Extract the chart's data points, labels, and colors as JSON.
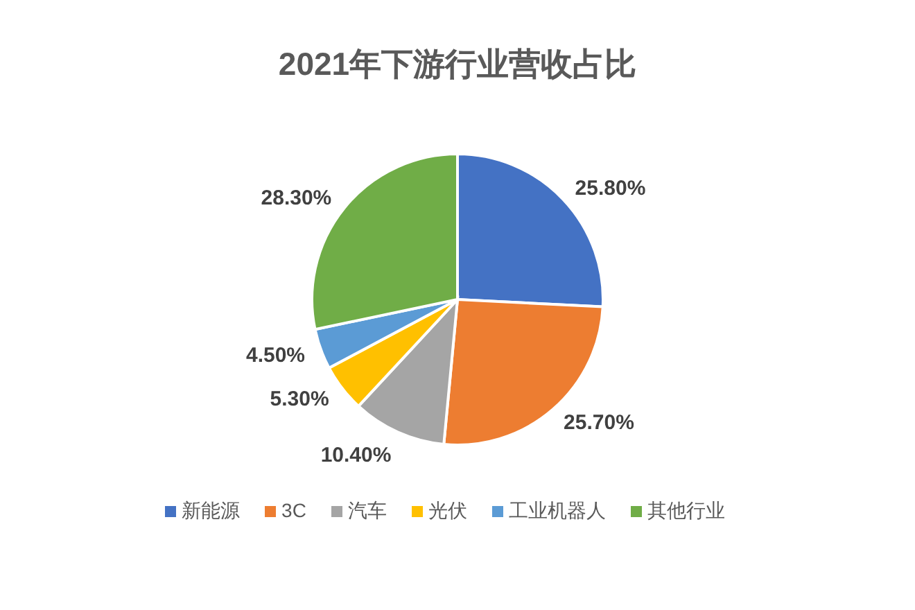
{
  "chart_data": {
    "type": "pie",
    "title": "2021年下游行业营收占比",
    "categories": [
      "新能源",
      "3C",
      "汽车",
      "光伏",
      "工业机器人",
      "其他行业"
    ],
    "values": [
      25.8,
      25.7,
      10.4,
      5.3,
      4.5,
      28.3
    ],
    "colors": [
      "#4472c4",
      "#ed7d31",
      "#a5a5a5",
      "#ffc000",
      "#5b9bd5",
      "#70ad47"
    ],
    "value_labels": [
      "25.80%",
      "25.70%",
      "10.40%",
      "5.30%",
      "4.50%",
      "28.30%"
    ],
    "legend": "bottom"
  }
}
